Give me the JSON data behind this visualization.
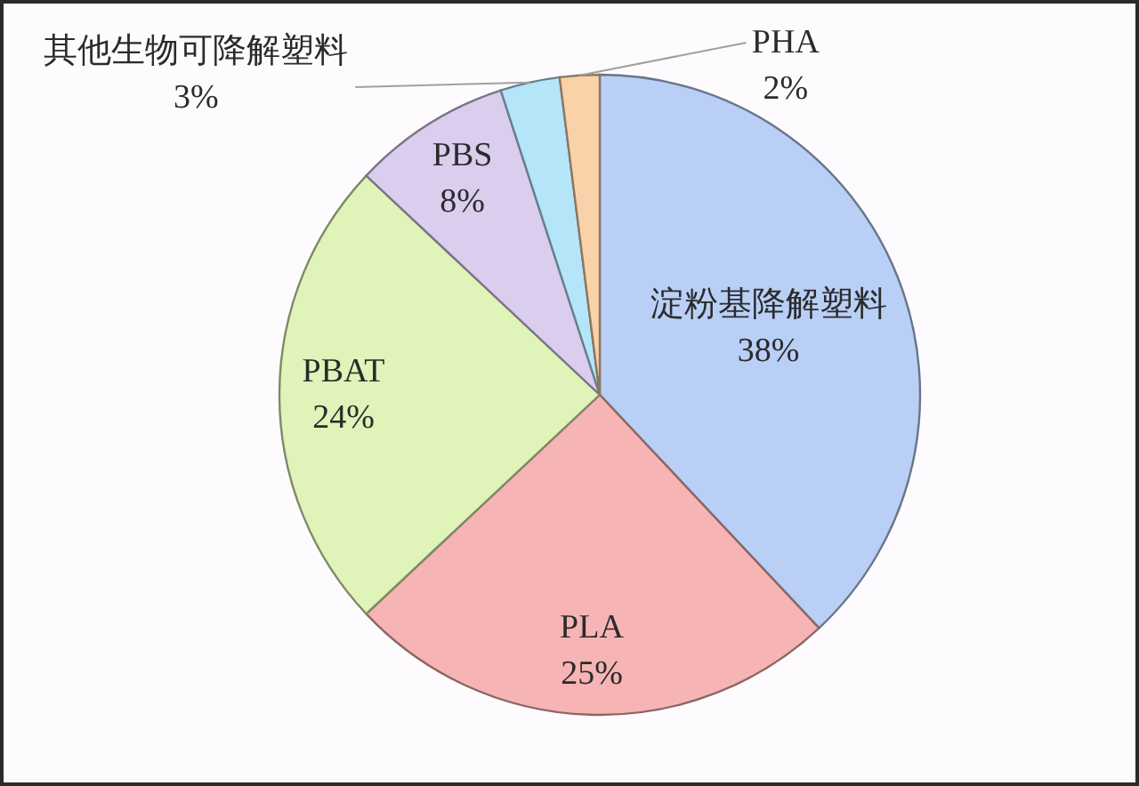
{
  "chart_data": {
    "type": "pie",
    "categories": [
      "淀粉基降解塑料",
      "PLA",
      "PBAT",
      "PBS",
      "其他生物可降解塑料",
      "PHA"
    ],
    "values": [
      38,
      25,
      24,
      8,
      3,
      2
    ],
    "colors": [
      "#b9cff6",
      "#f7b4b4",
      "#e0f3b8",
      "#dacdee",
      "#b5e5f8",
      "#f9d2aa"
    ],
    "value_labels": [
      "38%",
      "25%",
      "24%",
      "8%",
      "3%",
      "2%"
    ]
  }
}
